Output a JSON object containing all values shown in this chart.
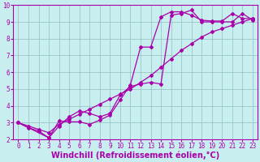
{
  "title": "",
  "xlabel": "Windchill (Refroidissement éolien,°C)",
  "ylabel": "",
  "bg_color": "#c8eef0",
  "line_color": "#aa00aa",
  "xlim": [
    -0.5,
    23.5
  ],
  "ylim": [
    2,
    10
  ],
  "yticks": [
    2,
    3,
    4,
    5,
    6,
    7,
    8,
    9,
    10
  ],
  "xticks": [
    0,
    1,
    2,
    3,
    4,
    5,
    6,
    7,
    8,
    9,
    10,
    11,
    12,
    13,
    14,
    15,
    16,
    17,
    18,
    19,
    20,
    21,
    22,
    23
  ],
  "line1_x": [
    0,
    1,
    2,
    3,
    4,
    5,
    6,
    7,
    8,
    9,
    10,
    11,
    12,
    13,
    14,
    15,
    16,
    17,
    18,
    19,
    20,
    21,
    22,
    23
  ],
  "line1_y": [
    3.0,
    2.7,
    2.5,
    2.1,
    3.1,
    3.05,
    3.05,
    2.9,
    3.15,
    3.45,
    4.35,
    5.25,
    7.5,
    7.5,
    9.3,
    9.6,
    9.6,
    9.4,
    9.1,
    9.05,
    9.05,
    9.5,
    9.2,
    9.2
  ],
  "line2_x": [
    0,
    3,
    4,
    5,
    6,
    7,
    8,
    9,
    10,
    11,
    12,
    13,
    14,
    15,
    16,
    17,
    18,
    19,
    20,
    21,
    22,
    23
  ],
  "line2_y": [
    3.0,
    2.1,
    2.8,
    3.35,
    3.7,
    3.55,
    3.35,
    3.55,
    4.65,
    5.15,
    5.3,
    5.4,
    5.3,
    9.4,
    9.5,
    9.7,
    9.0,
    9.0,
    9.0,
    9.0,
    9.5,
    9.1
  ],
  "line3_x": [
    0,
    1,
    2,
    3,
    4,
    5,
    6,
    7,
    8,
    9,
    10,
    11,
    12,
    13,
    14,
    15,
    16,
    17,
    18,
    19,
    20,
    21,
    22,
    23
  ],
  "line3_y": [
    3.0,
    2.8,
    2.6,
    2.4,
    2.9,
    3.2,
    3.5,
    3.8,
    4.1,
    4.4,
    4.7,
    5.0,
    5.4,
    5.8,
    6.3,
    6.8,
    7.3,
    7.7,
    8.1,
    8.4,
    8.6,
    8.8,
    9.0,
    9.2
  ],
  "grid_color": "#8fbfc0",
  "tick_fontsize": 5.5,
  "xlabel_fontsize": 7,
  "marker": "D",
  "marker_size": 2.0,
  "linewidth": 0.9
}
